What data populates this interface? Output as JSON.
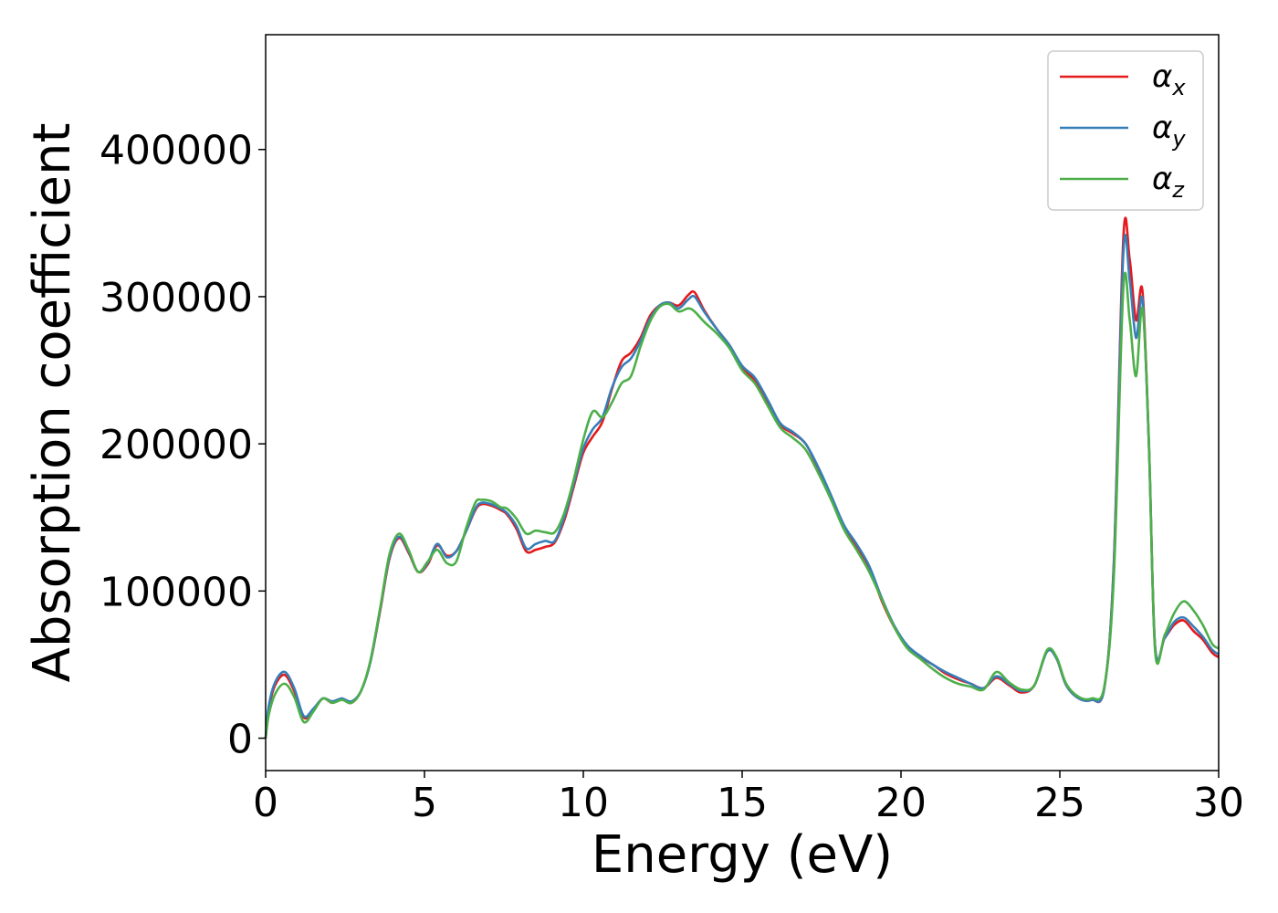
{
  "chart_data": {
    "type": "line",
    "xlabel": "Energy (eV)",
    "ylabel": "Absorption coefficient",
    "xlim": [
      0,
      30
    ],
    "ylim": [
      -22000,
      478000
    ],
    "xticks": [
      0,
      5,
      10,
      15,
      20,
      25,
      30
    ],
    "xtick_labels": [
      "0",
      "5",
      "10",
      "15",
      "20",
      "25",
      "30"
    ],
    "yticks": [
      0,
      100000,
      200000,
      300000,
      400000
    ],
    "ytick_labels": [
      "0",
      "100000",
      "200000",
      "300000",
      "400000"
    ],
    "grid": false,
    "legend_position": "top-right",
    "x": [
      0,
      0.1,
      0.3,
      0.6,
      0.9,
      1.2,
      1.5,
      1.8,
      2.1,
      2.4,
      2.7,
      3.0,
      3.3,
      3.6,
      3.9,
      4.2,
      4.5,
      4.8,
      5.1,
      5.4,
      5.7,
      6.0,
      6.3,
      6.6,
      6.8,
      7.1,
      7.4,
      7.6,
      7.9,
      8.2,
      8.5,
      8.8,
      9.1,
      9.4,
      9.7,
      10.0,
      10.3,
      10.6,
      10.9,
      11.2,
      11.5,
      11.8,
      12.1,
      12.4,
      12.7,
      13.0,
      13.3,
      13.5,
      13.8,
      14.2,
      14.6,
      15.0,
      15.4,
      15.8,
      16.2,
      16.6,
      17.0,
      17.4,
      17.8,
      18.2,
      18.6,
      19.0,
      19.4,
      19.8,
      20.2,
      20.6,
      21.0,
      21.4,
      21.8,
      22.2,
      22.6,
      23.0,
      23.4,
      23.8,
      24.2,
      24.6,
      24.9,
      25.2,
      25.6,
      26.0,
      26.4,
      26.7,
      27.0,
      27.2,
      27.4,
      27.6,
      27.8,
      28.0,
      28.3,
      28.6,
      28.9,
      29.2,
      29.5,
      29.8,
      30.0
    ],
    "series": [
      {
        "name": "α_x",
        "color": "#e41a1c",
        "values": [
          0,
          20000,
          36000,
          43000,
          32000,
          14000,
          19000,
          27000,
          24000,
          27000,
          24000,
          32000,
          52000,
          86000,
          122000,
          136000,
          126000,
          113000,
          118000,
          131000,
          124000,
          127000,
          140000,
          155000,
          159000,
          158000,
          155000,
          152000,
          142000,
          127000,
          128000,
          130000,
          133000,
          148000,
          171000,
          194000,
          205000,
          215000,
          237000,
          256000,
          262000,
          272000,
          287000,
          294000,
          296000,
          294000,
          301000,
          303000,
          291000,
          278000,
          267000,
          252000,
          243000,
          229000,
          213000,
          207000,
          200000,
          183000,
          164000,
          143000,
          130000,
          116000,
          93000,
          75000,
          62000,
          55000,
          50000,
          44000,
          40000,
          37000,
          34000,
          41000,
          36000,
          31000,
          36000,
          59000,
          54000,
          36000,
          27000,
          26000,
          34000,
          120000,
          340000,
          325000,
          284000,
          304000,
          203000,
          62000,
          68000,
          77000,
          80000,
          73000,
          67000,
          58000,
          55000
        ]
      },
      {
        "name": "α_y",
        "color": "#377eb8",
        "values": [
          0,
          22000,
          38000,
          45000,
          34000,
          15000,
          20000,
          27000,
          25000,
          27000,
          25000,
          32000,
          52000,
          87000,
          123000,
          137000,
          127000,
          113000,
          119000,
          132000,
          123000,
          127000,
          140000,
          156000,
          160000,
          159000,
          156000,
          153000,
          144000,
          129000,
          132000,
          134000,
          134000,
          150000,
          173000,
          197000,
          210000,
          218000,
          238000,
          252000,
          258000,
          270000,
          285000,
          294000,
          296000,
          292000,
          298000,
          300000,
          290000,
          278000,
          267000,
          253000,
          245000,
          230000,
          214000,
          208000,
          200000,
          184000,
          165000,
          145000,
          132000,
          117000,
          95000,
          76000,
          63000,
          56000,
          50000,
          45000,
          41000,
          37000,
          34000,
          42000,
          37000,
          32000,
          36000,
          59000,
          54000,
          36000,
          27000,
          26000,
          34000,
          118000,
          330000,
          311000,
          272000,
          298000,
          202000,
          62000,
          68000,
          79000,
          82000,
          76000,
          69000,
          60000,
          57000
        ]
      },
      {
        "name": "α_z",
        "color": "#4daf4a",
        "values": [
          0,
          16000,
          30000,
          37000,
          28000,
          11000,
          18000,
          27000,
          24000,
          26000,
          24000,
          32000,
          53000,
          88000,
          125000,
          139000,
          128000,
          113000,
          120000,
          128000,
          119000,
          120000,
          142000,
          160000,
          162000,
          161000,
          157000,
          156000,
          149000,
          139000,
          141000,
          140000,
          140000,
          153000,
          176000,
          203000,
          222000,
          218000,
          228000,
          241000,
          246000,
          266000,
          283000,
          293000,
          295000,
          290000,
          292000,
          290000,
          283000,
          275000,
          265000,
          250000,
          241000,
          226000,
          211000,
          204000,
          196000,
          180000,
          162000,
          142000,
          128000,
          113000,
          94000,
          75000,
          61000,
          54000,
          47000,
          41000,
          37000,
          35000,
          33000,
          45000,
          38000,
          33000,
          36000,
          60000,
          55000,
          37000,
          28000,
          27000,
          35000,
          110000,
          306000,
          284000,
          246000,
          292000,
          205000,
          59000,
          70000,
          85000,
          93000,
          87000,
          77000,
          64000,
          61000
        ]
      }
    ]
  }
}
